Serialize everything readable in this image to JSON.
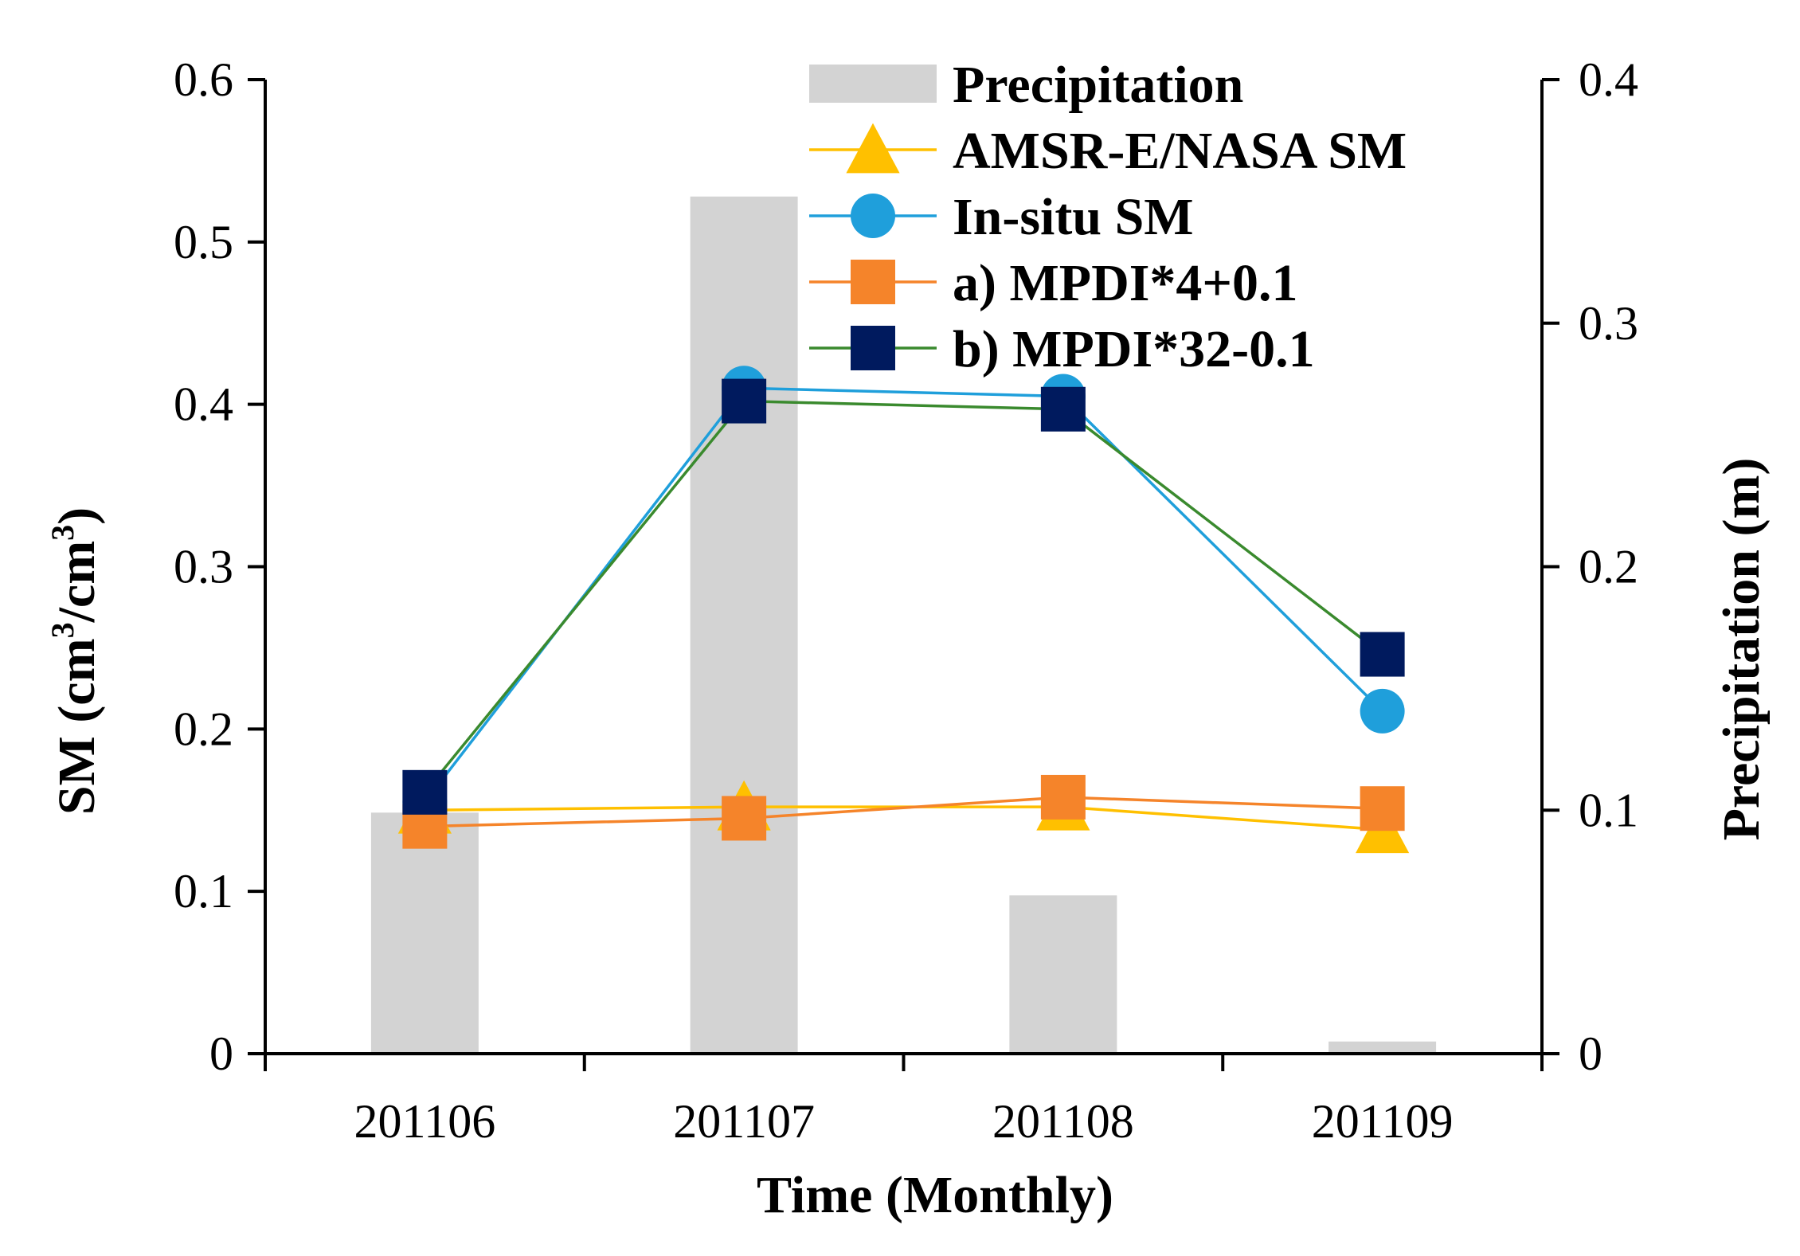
{
  "chart_data": {
    "type": "bar+line",
    "categories": [
      "201106",
      "201107",
      "201108",
      "201109"
    ],
    "xlabel": "Time (Monthly)",
    "ylabel_left": {
      "prefix": "SM (cm",
      "sup1": "3",
      "mid": "/cm",
      "sup2": "3",
      "suffix": ")"
    },
    "ylabel_right": "Precipitation (m)",
    "ylim_left": [
      0,
      0.6
    ],
    "yticks_left": [
      "0",
      "0.1",
      "0.2",
      "0.3",
      "0.4",
      "0.5",
      "0.6"
    ],
    "ylim_right": [
      0,
      0.4
    ],
    "yticks_right": [
      "0",
      "0.1",
      "0.2",
      "0.3",
      "0.4"
    ],
    "grid": false,
    "legend_position": "top-right",
    "bars": {
      "name": "Precipitation",
      "axis": "right",
      "color": "#d3d3d3",
      "values": [
        0.099,
        0.352,
        0.065,
        0.005
      ]
    },
    "series": [
      {
        "name": "AMSR-E/NASA SM",
        "axis": "left",
        "marker": "triangle",
        "color": "#ffc000",
        "values": [
          0.15,
          0.152,
          0.152,
          0.138
        ]
      },
      {
        "name": "In-situ SM",
        "axis": "left",
        "marker": "circle",
        "color": "#1f9fdb",
        "values": [
          0.155,
          0.41,
          0.405,
          0.211
        ]
      },
      {
        "name": "a) MPDI*4+0.1",
        "axis": "left",
        "marker": "square",
        "color": "#f5842a",
        "values": [
          0.14,
          0.145,
          0.158,
          0.151
        ]
      },
      {
        "name": "b) MPDI*32-0.1",
        "axis": "left",
        "marker": "square",
        "color": "#001a5e",
        "line_color": "#3a8a2e",
        "values": [
          0.161,
          0.402,
          0.397,
          0.246
        ]
      }
    ]
  }
}
